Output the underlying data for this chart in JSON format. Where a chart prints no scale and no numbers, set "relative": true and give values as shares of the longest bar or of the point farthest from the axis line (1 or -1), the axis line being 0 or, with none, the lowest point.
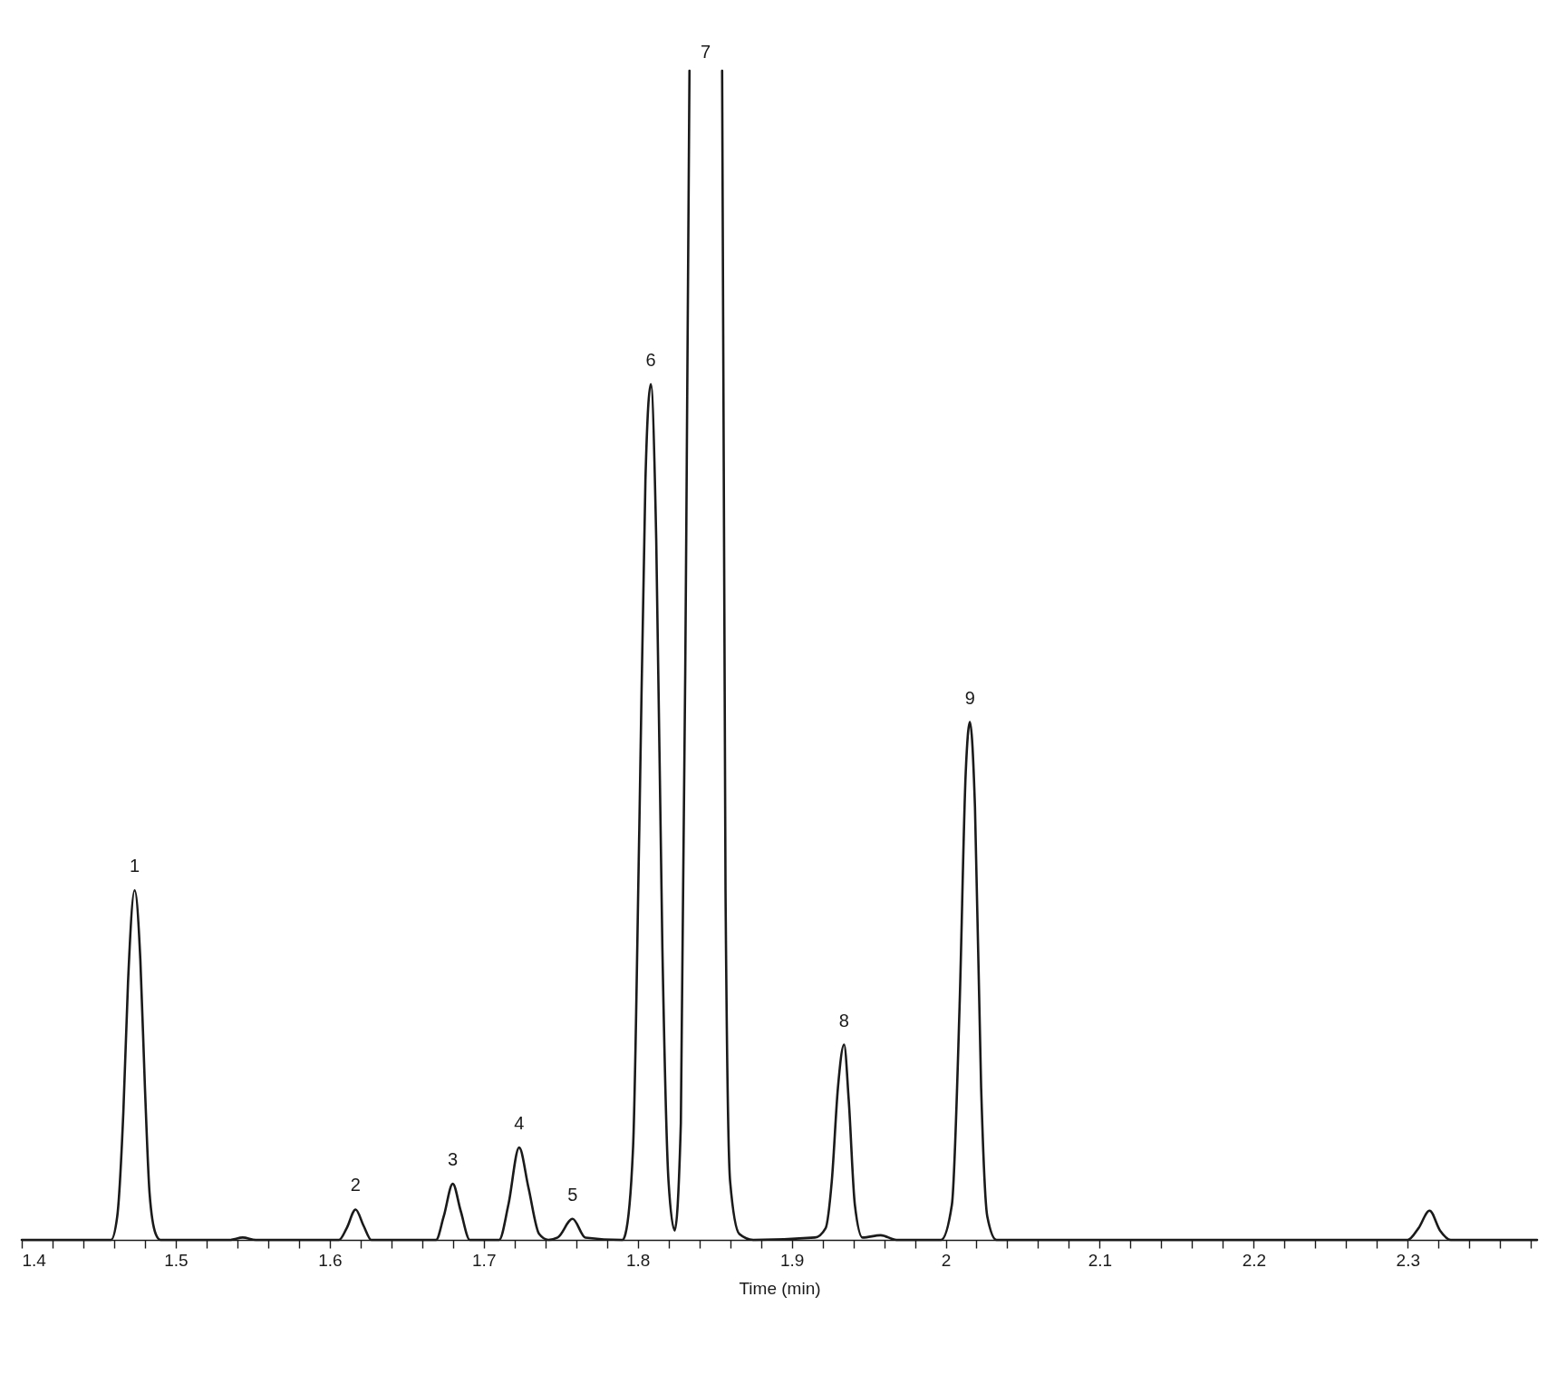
{
  "chart_data": {
    "type": "line",
    "relative": true,
    "xlabel": "Time (min)",
    "xlim": [
      1.4,
      2.384
    ],
    "xticks": [
      1.4,
      {
        "value": 1.42,
        "label": null
      },
      {
        "value": 1.44,
        "label": null
      },
      {
        "value": 1.46,
        "label": null
      },
      {
        "value": 1.48,
        "label": null
      },
      1.5,
      {
        "value": 1.52,
        "label": null
      },
      {
        "value": 1.54,
        "label": null
      },
      {
        "value": 1.56,
        "label": null
      },
      {
        "value": 1.58,
        "label": null
      },
      1.6,
      {
        "value": 1.62,
        "label": null
      },
      {
        "value": 1.64,
        "label": null
      },
      {
        "value": 1.66,
        "label": null
      },
      {
        "value": 1.68,
        "label": null
      },
      1.7,
      {
        "value": 1.72,
        "label": null
      },
      {
        "value": 1.74,
        "label": null
      },
      {
        "value": 1.76,
        "label": null
      },
      {
        "value": 1.78,
        "label": null
      },
      1.8,
      {
        "value": 1.82,
        "label": null
      },
      {
        "value": 1.84,
        "label": null
      },
      {
        "value": 1.86,
        "label": null
      },
      {
        "value": 1.88,
        "label": null
      },
      1.9,
      {
        "value": 1.92,
        "label": null
      },
      {
        "value": 1.94,
        "label": null
      },
      {
        "value": 1.96,
        "label": null
      },
      {
        "value": 1.98,
        "label": null
      },
      2,
      {
        "value": 2.02,
        "label": null
      },
      {
        "value": 2.04,
        "label": null
      },
      {
        "value": 2.06,
        "label": null
      },
      {
        "value": 2.08,
        "label": null
      },
      2.1,
      {
        "value": 2.12,
        "label": null
      },
      {
        "value": 2.14,
        "label": null
      },
      {
        "value": 2.16,
        "label": null
      },
      {
        "value": 2.18,
        "label": null
      },
      2.2,
      {
        "value": 2.22,
        "label": null
      },
      {
        "value": 2.24,
        "label": null
      },
      {
        "value": 2.26,
        "label": null
      },
      {
        "value": 2.28,
        "label": null
      },
      2.3,
      {
        "value": 2.32,
        "label": null
      },
      {
        "value": 2.34,
        "label": null
      },
      {
        "value": 2.36,
        "label": null
      },
      {
        "value": 2.38,
        "label": null
      }
    ],
    "tick_labels": "x",
    "grid": false,
    "marker": "none",
    "line_style": "solid",
    "series": [
      {
        "color": "#1a1a1a",
        "x": [
          1.4,
          1.458,
          1.462,
          1.466,
          1.469,
          1.4733,
          1.477,
          1.48,
          1.483,
          1.487,
          1.49,
          1.535,
          1.5435,
          1.552,
          1.606,
          1.611,
          1.6168,
          1.622,
          1.627,
          1.669,
          1.674,
          1.6799,
          1.685,
          1.691,
          1.71,
          1.716,
          1.723,
          1.729,
          1.736,
          1.742,
          1.748,
          1.7577,
          1.766,
          1.79,
          1.792,
          1.797,
          1.801,
          1.805,
          1.8085,
          1.812,
          1.816,
          1.82,
          1.824,
          1.828,
          1.8315,
          1.8336,
          1.844,
          1.8548,
          1.857,
          1.86,
          1.866,
          1.875,
          1.915,
          1.922,
          1.926,
          1.93,
          1.934,
          1.937,
          1.941,
          1.946,
          1.9578,
          1.968,
          1.997,
          2.004,
          2.009,
          2.013,
          2.0157,
          2.019,
          2.023,
          2.027,
          2.033,
          2.3,
          2.307,
          2.3142,
          2.321,
          2.328,
          2.384
        ],
        "values": [
          0,
          0,
          0.02,
          0.11,
          0.22,
          0.299,
          0.24,
          0.13,
          0.04,
          0.005,
          0,
          0,
          0.002,
          0,
          0,
          0.01,
          0.026,
          0.012,
          0,
          0,
          0.02,
          0.048,
          0.025,
          0,
          0,
          0.03,
          0.079,
          0.045,
          0.005,
          0,
          0.002,
          0.018,
          0.002,
          0,
          0.005,
          0.08,
          0.35,
          0.65,
          0.732,
          0.6,
          0.25,
          0.05,
          0.008,
          0.1,
          0.6,
          1.0,
          null,
          1.0,
          0.3,
          0.05,
          0.005,
          0,
          0.002,
          0.01,
          0.05,
          0.13,
          0.167,
          0.12,
          0.03,
          0.002,
          0.004,
          0,
          0,
          0.03,
          0.2,
          0.4,
          0.443,
          0.37,
          0.13,
          0.02,
          0,
          0,
          0.01,
          0.025,
          0.008,
          0,
          0
        ]
      }
    ],
    "annotations": [
      {
        "text": "1",
        "x": 1.4733,
        "y": 0.299
      },
      {
        "text": "2",
        "x": 1.6168,
        "y": 0.026
      },
      {
        "text": "3",
        "x": 1.6799,
        "y": 0.048
      },
      {
        "text": "4",
        "x": 1.723,
        "y": 0.079
      },
      {
        "text": "5",
        "x": 1.7577,
        "y": 0.018
      },
      {
        "text": "6",
        "x": 1.8085,
        "y": 0.732
      },
      "7",
      {
        "text": "8",
        "x": 1.934,
        "y": 0.167
      },
      {
        "text": "9",
        "x": 2.0157,
        "y": 0.443
      }
    ]
  }
}
